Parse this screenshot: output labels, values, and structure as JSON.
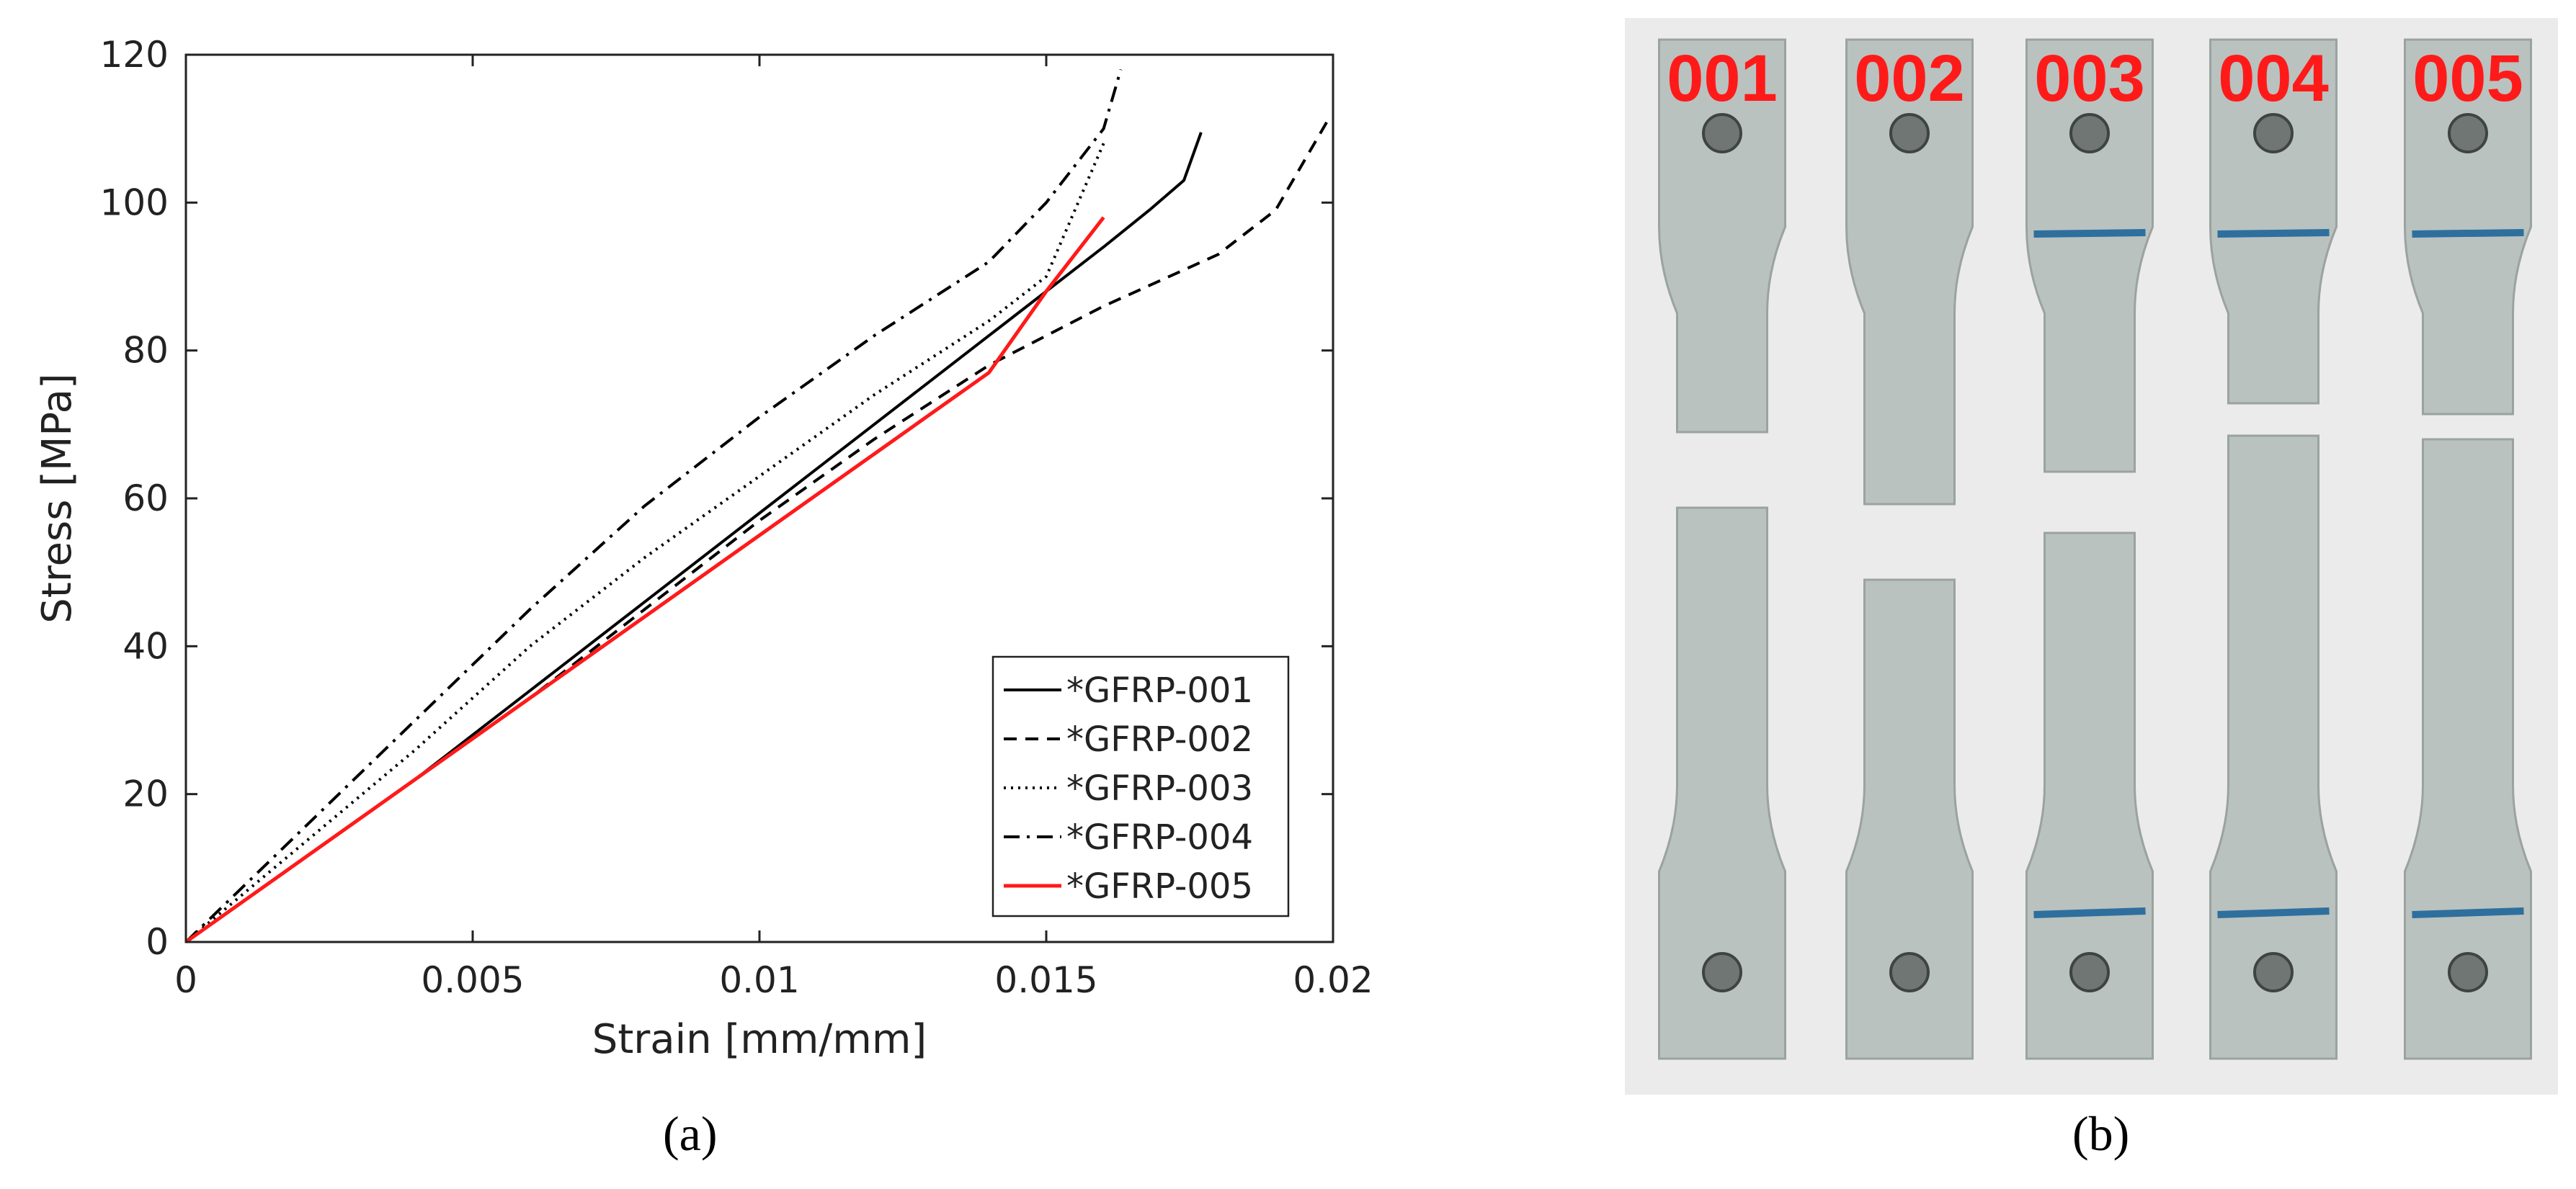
{
  "chart_data": {
    "type": "line",
    "xlabel": "Strain [mm/mm]",
    "ylabel": "Stress [MPa]",
    "xlim": [
      0,
      0.02
    ],
    "ylim": [
      0,
      120
    ],
    "xticks": [
      0,
      0.005,
      0.01,
      0.015,
      0.02
    ],
    "xtick_labels": [
      "0",
      "0.005",
      "0.01",
      "0.015",
      "0.02"
    ],
    "yticks": [
      0,
      20,
      40,
      60,
      80,
      100,
      120
    ],
    "ytick_labels": [
      "0",
      "20",
      "40",
      "60",
      "80",
      "100",
      "120"
    ],
    "grid": false,
    "legend_position": "bottom-right",
    "series": [
      {
        "name": "*GFRP-001",
        "color": "#000000",
        "style": "solid",
        "x": [
          0,
          0.002,
          0.004,
          0.006,
          0.008,
          0.01,
          0.012,
          0.014,
          0.015,
          0.016,
          0.0168,
          0.0174,
          0.0177
        ],
        "y": [
          0,
          11,
          22,
          34,
          46,
          58,
          70,
          82,
          88,
          94,
          99,
          103,
          109.5
        ]
      },
      {
        "name": "*GFRP-002",
        "color": "#000000",
        "style": "dashed",
        "x": [
          0,
          0.002,
          0.004,
          0.006,
          0.008,
          0.01,
          0.012,
          0.014,
          0.016,
          0.018,
          0.019,
          0.0199
        ],
        "y": [
          0,
          11,
          22,
          33,
          45,
          57,
          68,
          78,
          86,
          93,
          99,
          111
        ]
      },
      {
        "name": "*GFRP-003",
        "color": "#000000",
        "style": "dotted",
        "x": [
          0,
          0.002,
          0.004,
          0.006,
          0.008,
          0.01,
          0.012,
          0.014,
          0.015,
          0.016
        ],
        "y": [
          0,
          13,
          26,
          40,
          52,
          63,
          74,
          84,
          90,
          108
        ]
      },
      {
        "name": "*GFRP-004",
        "color": "#000000",
        "style": "dashdot",
        "x": [
          0,
          0.002,
          0.004,
          0.006,
          0.008,
          0.01,
          0.012,
          0.014,
          0.015,
          0.016,
          0.0163
        ],
        "y": [
          0,
          15,
          30,
          45,
          59,
          71,
          82,
          92,
          100,
          110,
          118
        ]
      },
      {
        "name": "*GFRP-005",
        "color": "#ff1a1a",
        "style": "solid",
        "x": [
          0,
          0.002,
          0.004,
          0.006,
          0.008,
          0.01,
          0.012,
          0.014,
          0.015,
          0.016
        ],
        "y": [
          0,
          11,
          22,
          33,
          44,
          55,
          66,
          77,
          88,
          98
        ]
      }
    ]
  },
  "panels": {
    "a_label": "(a)",
    "b_label": "(b)",
    "b_strip_labels": [
      "001",
      "002",
      "003",
      "004",
      "005"
    ]
  }
}
